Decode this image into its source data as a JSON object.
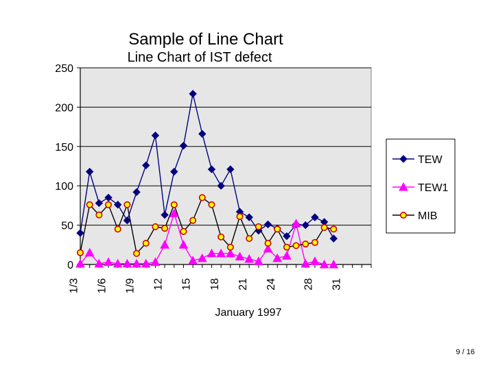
{
  "slide": {
    "title": "Sample of Line Chart",
    "page_number": "9 / 16"
  },
  "chart_data": {
    "type": "line",
    "title": "Line Chart of IST defect",
    "xlabel": "January 1997",
    "ylabel": "",
    "ylim": [
      0,
      250
    ],
    "y_ticks": [
      0,
      50,
      100,
      150,
      200,
      250
    ],
    "x": [
      "1/3",
      "",
      "",
      "1/6",
      "",
      "",
      "1/9",
      "",
      "",
      "12",
      "",
      "",
      "15",
      "",
      "",
      "18",
      "",
      "",
      "21",
      "",
      "",
      "24",
      "",
      "",
      "",
      "28",
      "",
      "",
      "31",
      "",
      "",
      ""
    ],
    "grid": "horizontal",
    "legend_position": "right",
    "colors": {
      "plot_background": "#e6e6e6",
      "TEW": "#000080",
      "TEW1": "#ff00ff",
      "MIB_fill": "#ffff00",
      "MIB_edge": "#cc0000"
    },
    "series": [
      {
        "name": "TEW",
        "marker": "diamond",
        "values": [
          40,
          118,
          78,
          85,
          76,
          56,
          92,
          126,
          164,
          63,
          118,
          151,
          217,
          166,
          121,
          100,
          121,
          67,
          60,
          43,
          51,
          46,
          36,
          51,
          50,
          60,
          54,
          33,
          null,
          null,
          null,
          null
        ]
      },
      {
        "name": "TEW1",
        "marker": "triangle",
        "values": [
          1,
          15,
          1,
          3,
          1,
          1,
          1,
          1,
          3,
          25,
          65,
          25,
          5,
          8,
          14,
          14,
          14,
          10,
          7,
          4,
          20,
          8,
          11,
          52,
          1,
          4,
          0,
          0,
          null,
          null,
          null,
          null
        ]
      },
      {
        "name": "MIB",
        "marker": "circle",
        "values": [
          15,
          76,
          63,
          76,
          45,
          76,
          14,
          27,
          48,
          46,
          76,
          42,
          56,
          85,
          76,
          35,
          22,
          61,
          33,
          48,
          27,
          45,
          22,
          24,
          26,
          28,
          47,
          45,
          null,
          null,
          null,
          null
        ]
      }
    ]
  }
}
